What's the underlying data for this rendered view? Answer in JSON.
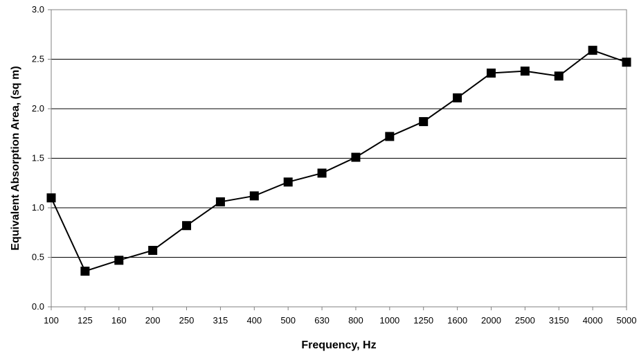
{
  "chart_data": {
    "type": "line",
    "title": "",
    "xlabel": "Frequency, Hz",
    "ylabel": "Equivalent Absorption Area, (sq m)",
    "categories": [
      "100",
      "125",
      "160",
      "200",
      "250",
      "315",
      "400",
      "500",
      "630",
      "800",
      "1000",
      "1250",
      "1600",
      "2000",
      "2500",
      "3150",
      "4000",
      "5000"
    ],
    "series": [
      {
        "values": [
          1.1,
          0.36,
          0.47,
          0.57,
          0.82,
          1.06,
          1.12,
          1.26,
          1.35,
          1.51,
          1.72,
          1.87,
          2.11,
          2.36,
          2.38,
          2.33,
          2.59,
          2.47
        ]
      }
    ],
    "ylim": [
      0,
      3.0
    ],
    "yticks": [
      "0.0",
      "0.5",
      "1.0",
      "1.5",
      "2.0",
      "2.5",
      "3.0"
    ],
    "grid": true,
    "legend": "none",
    "colors": {
      "line": "#000000",
      "marker": "#000000",
      "grid": "#000000",
      "axis": "#808080"
    }
  }
}
